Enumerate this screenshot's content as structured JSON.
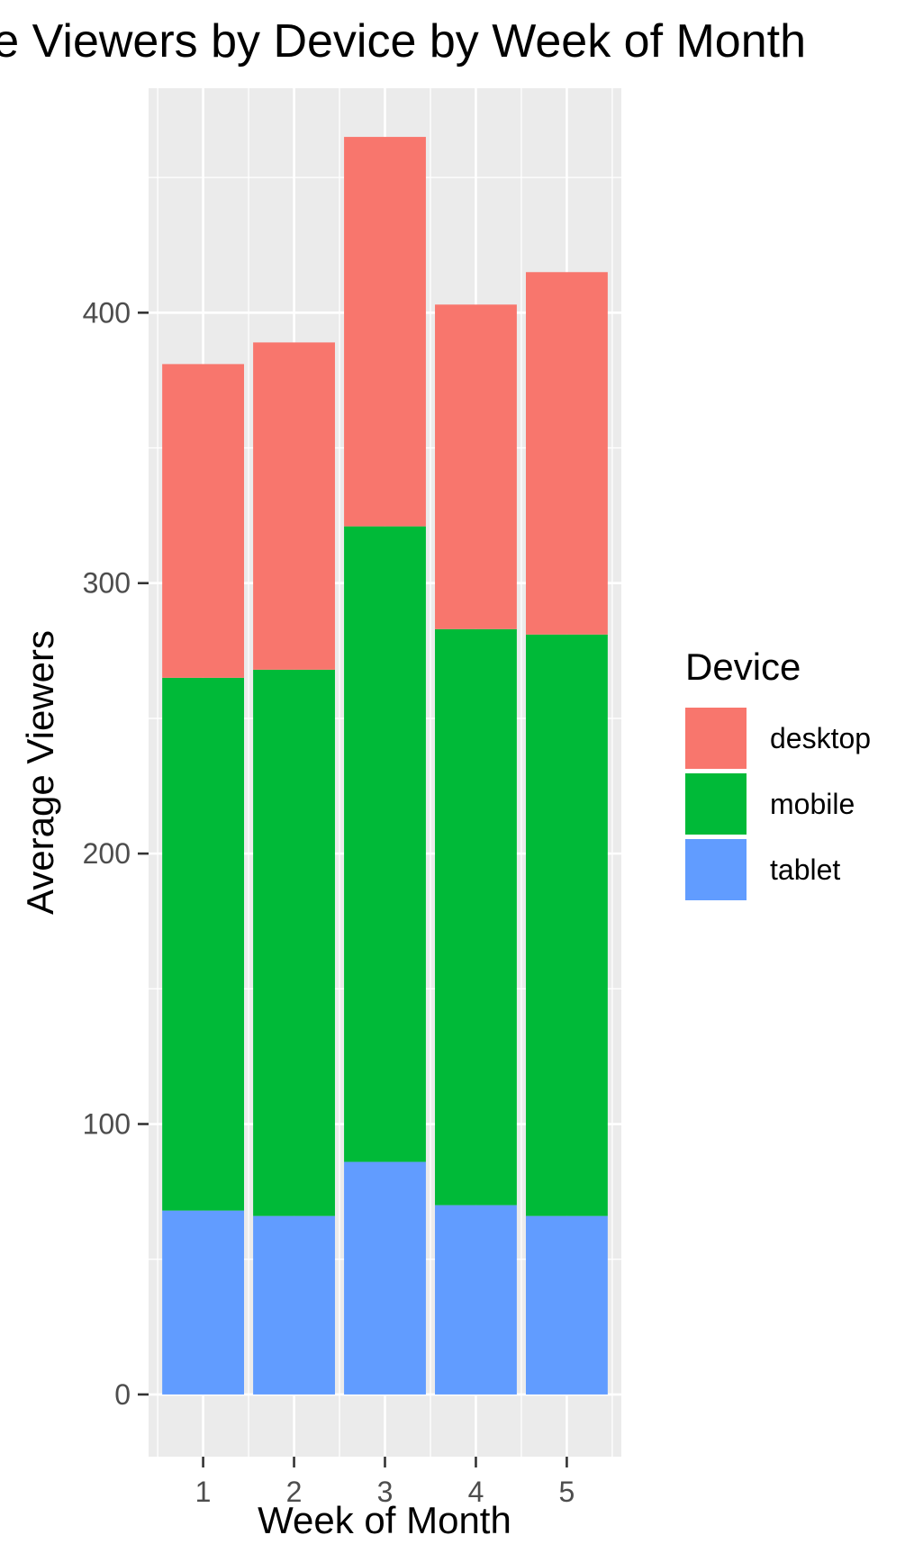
{
  "chart_data": {
    "type": "bar",
    "stacked": true,
    "title": "Average Viewers by Device by Week of Month",
    "xlabel": "Week of Month",
    "ylabel": "Average Viewers",
    "categories": [
      "1",
      "2",
      "3",
      "4",
      "5"
    ],
    "y_ticks": [
      0,
      100,
      200,
      300,
      400
    ],
    "ylim": [
      -23,
      483
    ],
    "grid": true,
    "legend": {
      "title": "Device",
      "placement": "right"
    },
    "series": [
      {
        "name": "tablet",
        "color": "#619CFF",
        "values": [
          68,
          66,
          86,
          70,
          66
        ]
      },
      {
        "name": "mobile",
        "color": "#00BA38",
        "values": [
          197,
          202,
          235,
          213,
          215
        ]
      },
      {
        "name": "desktop",
        "color": "#F8766D",
        "values": [
          116,
          121,
          144,
          120,
          134
        ]
      }
    ],
    "panel_background": "#EBEBEB",
    "grid_color": "#FFFFFF"
  }
}
